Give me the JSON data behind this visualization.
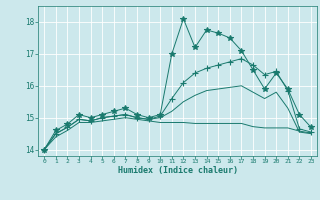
{
  "xlabel": "Humidex (Indice chaleur)",
  "ylabel": "",
  "bg_color": "#cce8ec",
  "line_color": "#1a7a6e",
  "grid_color": "#ffffff",
  "xlim": [
    -0.5,
    23.5
  ],
  "ylim": [
    13.8,
    18.5
  ],
  "xticks": [
    0,
    1,
    2,
    3,
    4,
    5,
    6,
    7,
    8,
    9,
    10,
    11,
    12,
    13,
    14,
    15,
    16,
    17,
    18,
    19,
    20,
    21,
    22,
    23
  ],
  "yticks": [
    14,
    15,
    16,
    17,
    18
  ],
  "lines": [
    {
      "x": [
        0,
        1,
        2,
        3,
        4,
        5,
        6,
        7,
        8,
        9,
        10,
        11,
        12,
        13,
        14,
        15,
        16,
        17,
        18,
        19,
        20,
        21,
        22,
        23
      ],
      "y": [
        14.0,
        14.6,
        14.8,
        15.1,
        15.0,
        15.1,
        15.2,
        15.3,
        15.1,
        15.0,
        15.1,
        17.0,
        18.1,
        17.2,
        17.75,
        17.65,
        17.5,
        17.1,
        16.5,
        15.9,
        16.4,
        15.9,
        15.1,
        14.7
      ],
      "marker": "*",
      "marker_size": 4
    },
    {
      "x": [
        0,
        1,
        2,
        3,
        4,
        5,
        6,
        7,
        8,
        9,
        10,
        11,
        12,
        13,
        14,
        15,
        16,
        17,
        18,
        19,
        20,
        21,
        22,
        23
      ],
      "y": [
        14.0,
        14.5,
        14.7,
        14.95,
        14.9,
        15.0,
        15.05,
        15.1,
        15.0,
        14.95,
        15.05,
        15.6,
        16.1,
        16.4,
        16.55,
        16.65,
        16.75,
        16.85,
        16.65,
        16.35,
        16.45,
        15.85,
        14.65,
        14.55
      ],
      "marker": "+",
      "marker_size": 4
    },
    {
      "x": [
        0,
        1,
        2,
        3,
        4,
        5,
        6,
        7,
        8,
        9,
        10,
        11,
        12,
        13,
        14,
        15,
        16,
        17,
        18,
        19,
        20,
        21,
        22,
        23
      ],
      "y": [
        14.0,
        14.5,
        14.7,
        14.95,
        14.9,
        15.0,
        15.05,
        15.1,
        15.0,
        14.95,
        15.0,
        15.2,
        15.5,
        15.7,
        15.85,
        15.9,
        15.95,
        16.0,
        15.8,
        15.6,
        15.8,
        15.3,
        14.55,
        14.5
      ],
      "marker": "None",
      "marker_size": 0
    },
    {
      "x": [
        0,
        1,
        2,
        3,
        4,
        5,
        6,
        7,
        8,
        9,
        10,
        11,
        12,
        13,
        14,
        15,
        16,
        17,
        18,
        19,
        20,
        21,
        22,
        23
      ],
      "y": [
        14.0,
        14.4,
        14.6,
        14.85,
        14.85,
        14.9,
        14.95,
        15.0,
        14.95,
        14.9,
        14.85,
        14.85,
        14.85,
        14.82,
        14.82,
        14.82,
        14.82,
        14.82,
        14.72,
        14.68,
        14.68,
        14.68,
        14.58,
        14.52
      ],
      "marker": "None",
      "marker_size": 0
    }
  ]
}
